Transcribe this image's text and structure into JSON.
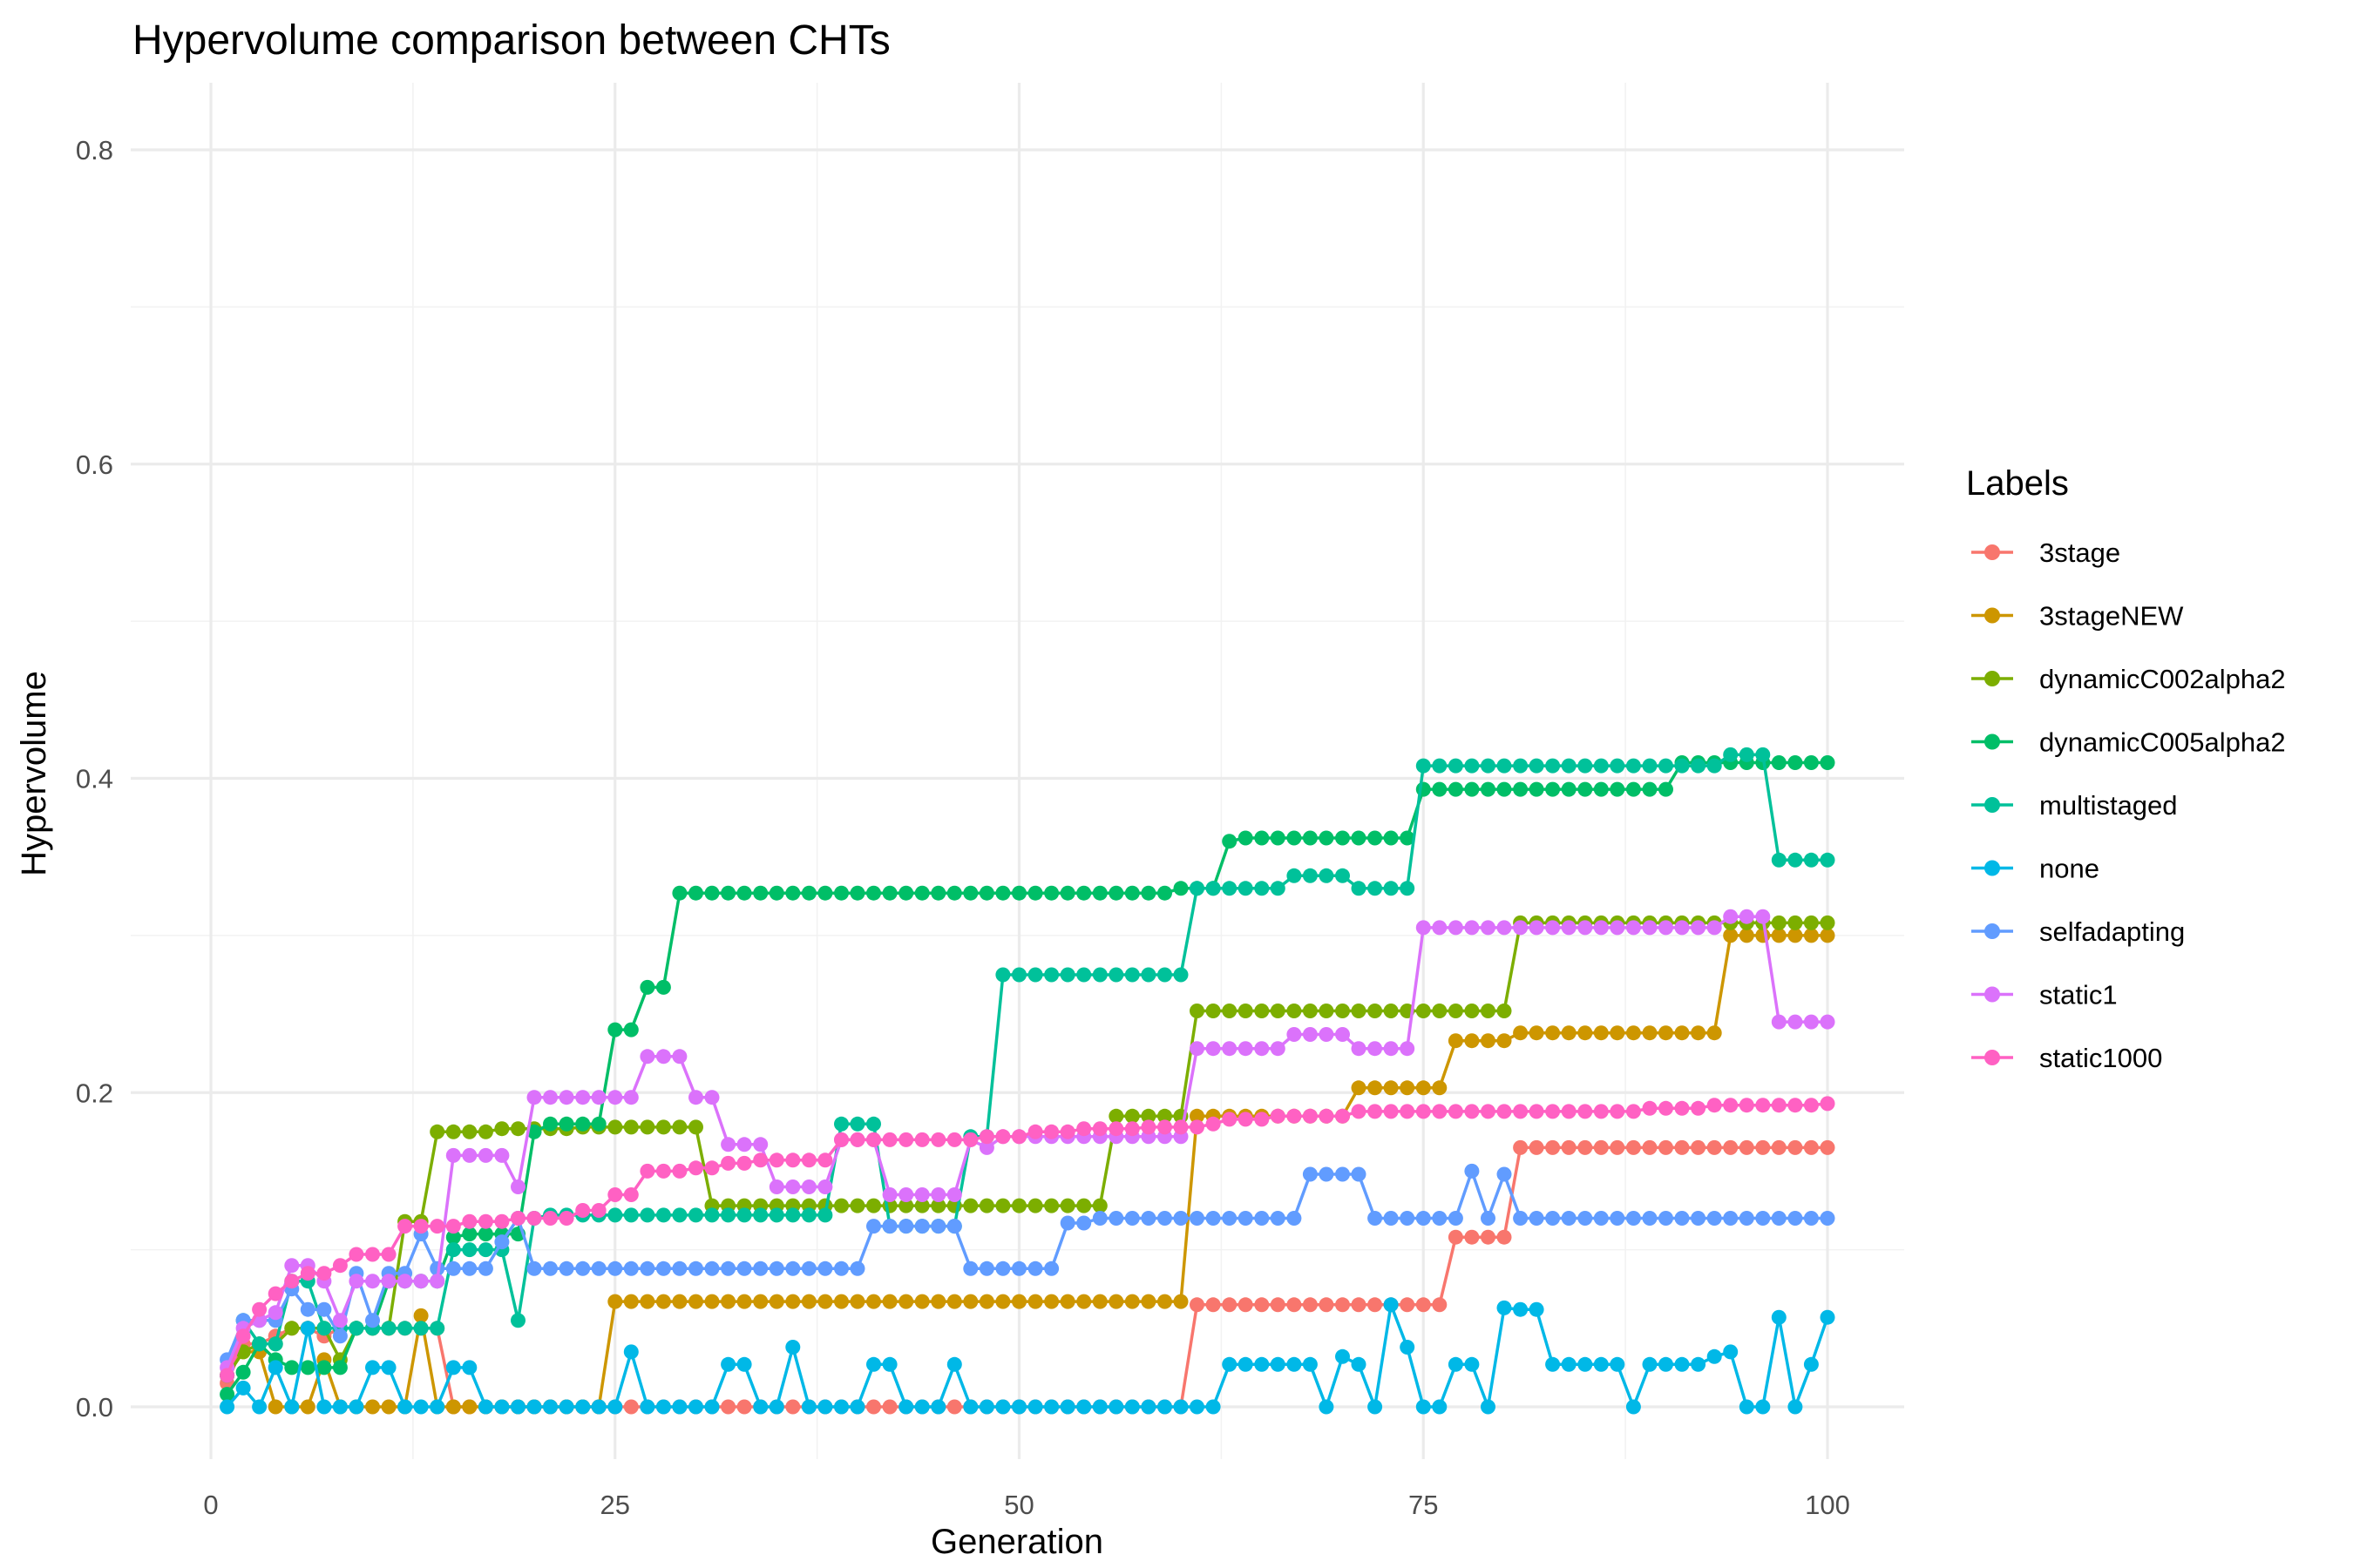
{
  "chart_data": {
    "type": "line",
    "title": "Hypervolume comparison between CHTs",
    "xlabel": "Generation",
    "ylabel": "Hypervolume",
    "xlim": [
      0,
      100
    ],
    "ylim": [
      0,
      0.8
    ],
    "x_ticks": [
      0,
      25,
      50,
      75,
      100
    ],
    "y_ticks": [
      0.0,
      0.2,
      0.4,
      0.6,
      0.8
    ],
    "x_tick_labels": [
      "0",
      "25",
      "50",
      "75",
      "100"
    ],
    "y_tick_labels": [
      "0.0",
      "0.2",
      "0.4",
      "0.6",
      "0.8"
    ],
    "grid": true,
    "markers": true,
    "legend": {
      "title": "Labels",
      "position": "right"
    },
    "x": [
      1,
      2,
      3,
      4,
      5,
      6,
      7,
      8,
      9,
      10,
      11,
      12,
      13,
      14,
      15,
      16,
      17,
      18,
      19,
      20,
      21,
      22,
      23,
      24,
      25,
      26,
      27,
      28,
      29,
      30,
      31,
      32,
      33,
      34,
      35,
      36,
      37,
      38,
      39,
      40,
      41,
      42,
      43,
      44,
      45,
      46,
      47,
      48,
      49,
      50,
      51,
      52,
      53,
      54,
      55,
      56,
      57,
      58,
      59,
      60,
      61,
      62,
      63,
      64,
      65,
      66,
      67,
      68,
      69,
      70,
      71,
      72,
      73,
      74,
      75,
      76,
      77,
      78,
      79,
      80,
      81,
      82,
      83,
      84,
      85,
      86,
      87,
      88,
      89,
      90,
      91,
      92,
      93,
      94,
      95,
      96,
      97,
      98,
      99,
      100
    ],
    "series": [
      {
        "name": "3stage",
        "color": "#F8766D",
        "values": [
          0.015,
          0.04,
          0.04,
          0.045,
          0.05,
          0.05,
          0.045,
          0.05,
          0.05,
          0.05,
          0.05,
          0.05,
          0.05,
          0.05,
          0,
          0,
          0,
          0,
          0,
          0,
          0,
          0,
          0,
          0,
          0,
          0,
          0,
          0,
          0,
          0,
          0,
          0,
          0,
          0,
          0,
          0,
          0,
          0,
          0,
          0,
          0,
          0,
          0,
          0,
          0,
          0,
          0,
          0,
          0,
          0,
          0,
          0,
          0,
          0,
          0,
          0,
          0,
          0,
          0,
          0,
          0.065,
          0.065,
          0.065,
          0.065,
          0.065,
          0.065,
          0.065,
          0.065,
          0.065,
          0.065,
          0.065,
          0.065,
          0.065,
          0.065,
          0.065,
          0.065,
          0.108,
          0.108,
          0.108,
          0.108,
          0.165,
          0.165,
          0.165,
          0.165,
          0.165,
          0.165,
          0.165,
          0.165,
          0.165,
          0.165,
          0.165,
          0.165,
          0.165,
          0.165,
          0.165,
          0.165,
          0.165,
          0.165,
          0.165,
          0.165
        ]
      },
      {
        "name": "3stageNEW",
        "color": "#CD9600",
        "values": [
          0.02,
          0.035,
          0.035,
          0,
          0,
          0,
          0.03,
          0,
          0,
          0,
          0,
          0,
          0.058,
          0,
          0,
          0,
          0,
          0,
          0,
          0,
          0,
          0,
          0,
          0,
          0.067,
          0.067,
          0.067,
          0.067,
          0.067,
          0.067,
          0.067,
          0.067,
          0.067,
          0.067,
          0.067,
          0.067,
          0.067,
          0.067,
          0.067,
          0.067,
          0.067,
          0.067,
          0.067,
          0.067,
          0.067,
          0.067,
          0.067,
          0.067,
          0.067,
          0.067,
          0.067,
          0.067,
          0.067,
          0.067,
          0.067,
          0.067,
          0.067,
          0.067,
          0.067,
          0.067,
          0.185,
          0.185,
          0.185,
          0.185,
          0.185,
          0.185,
          0.185,
          0.185,
          0.185,
          0.185,
          0.203,
          0.203,
          0.203,
          0.203,
          0.203,
          0.203,
          0.233,
          0.233,
          0.233,
          0.233,
          0.238,
          0.238,
          0.238,
          0.238,
          0.238,
          0.238,
          0.238,
          0.238,
          0.238,
          0.238,
          0.238,
          0.238,
          0.238,
          0.3,
          0.3,
          0.3,
          0.3,
          0.3,
          0.3,
          0.3
        ]
      },
      {
        "name": "dynamicC002alpha2",
        "color": "#7CAE00",
        "values": [
          0.02,
          0.035,
          0.04,
          0.04,
          0.05,
          0.05,
          0.05,
          0.03,
          0.05,
          0.05,
          0.05,
          0.118,
          0.118,
          0.175,
          0.175,
          0.175,
          0.175,
          0.177,
          0.177,
          0.177,
          0.177,
          0.177,
          0.178,
          0.178,
          0.178,
          0.178,
          0.178,
          0.178,
          0.178,
          0.178,
          0.128,
          0.128,
          0.128,
          0.128,
          0.128,
          0.128,
          0.128,
          0.128,
          0.128,
          0.128,
          0.128,
          0.128,
          0.128,
          0.128,
          0.128,
          0.128,
          0.128,
          0.128,
          0.128,
          0.128,
          0.128,
          0.128,
          0.128,
          0.128,
          0.128,
          0.185,
          0.185,
          0.185,
          0.185,
          0.185,
          0.252,
          0.252,
          0.252,
          0.252,
          0.252,
          0.252,
          0.252,
          0.252,
          0.252,
          0.252,
          0.252,
          0.252,
          0.252,
          0.252,
          0.252,
          0.252,
          0.252,
          0.252,
          0.252,
          0.252,
          0.308,
          0.308,
          0.308,
          0.308,
          0.308,
          0.308,
          0.308,
          0.308,
          0.308,
          0.308,
          0.308,
          0.308,
          0.308,
          0.308,
          0.308,
          0.308,
          0.308,
          0.308,
          0.308,
          0.308
        ]
      },
      {
        "name": "dynamicC005alpha2",
        "color": "#00BE67",
        "values": [
          0.008,
          0.022,
          0.04,
          0.03,
          0.025,
          0.025,
          0.025,
          0.025,
          0.05,
          0.05,
          0.08,
          0.08,
          0.08,
          0.08,
          0.108,
          0.11,
          0.11,
          0.11,
          0.11,
          0.175,
          0.18,
          0.18,
          0.18,
          0.18,
          0.24,
          0.24,
          0.267,
          0.267,
          0.327,
          0.327,
          0.327,
          0.327,
          0.327,
          0.327,
          0.327,
          0.327,
          0.327,
          0.327,
          0.327,
          0.327,
          0.327,
          0.327,
          0.327,
          0.327,
          0.327,
          0.327,
          0.327,
          0.327,
          0.327,
          0.327,
          0.327,
          0.327,
          0.327,
          0.327,
          0.327,
          0.327,
          0.327,
          0.327,
          0.327,
          0.33,
          0.33,
          0.33,
          0.36,
          0.362,
          0.362,
          0.362,
          0.362,
          0.362,
          0.362,
          0.362,
          0.362,
          0.362,
          0.362,
          0.362,
          0.393,
          0.393,
          0.393,
          0.393,
          0.393,
          0.393,
          0.393,
          0.393,
          0.393,
          0.393,
          0.393,
          0.393,
          0.393,
          0.393,
          0.393,
          0.393,
          0.41,
          0.41,
          0.41,
          0.41,
          0.41,
          0.41,
          0.41,
          0.41,
          0.41,
          0.41
        ]
      },
      {
        "name": "multistaged",
        "color": "#00C19A",
        "values": [
          0.02,
          0.055,
          0.04,
          0.04,
          0.08,
          0.08,
          0.05,
          0.05,
          0.05,
          0.05,
          0.05,
          0.05,
          0.05,
          0.05,
          0.1,
          0.1,
          0.1,
          0.1,
          0.055,
          0.12,
          0.122,
          0.122,
          0.122,
          0.122,
          0.122,
          0.122,
          0.122,
          0.122,
          0.122,
          0.122,
          0.122,
          0.122,
          0.122,
          0.122,
          0.122,
          0.122,
          0.122,
          0.122,
          0.18,
          0.18,
          0.18,
          0.115,
          0.115,
          0.115,
          0.115,
          0.115,
          0.172,
          0.172,
          0.275,
          0.275,
          0.275,
          0.275,
          0.275,
          0.275,
          0.275,
          0.275,
          0.275,
          0.275,
          0.275,
          0.275,
          0.33,
          0.33,
          0.33,
          0.33,
          0.33,
          0.33,
          0.338,
          0.338,
          0.338,
          0.338,
          0.33,
          0.33,
          0.33,
          0.33,
          0.408,
          0.408,
          0.408,
          0.408,
          0.408,
          0.408,
          0.408,
          0.408,
          0.408,
          0.408,
          0.408,
          0.408,
          0.408,
          0.408,
          0.408,
          0.408,
          0.408,
          0.408,
          0.408,
          0.415,
          0.415,
          0.415,
          0.348,
          0.348,
          0.348,
          0.348
        ]
      },
      {
        "name": "none",
        "color": "#00B8E7",
        "values": [
          0,
          0.012,
          0,
          0.025,
          0,
          0.05,
          0,
          0,
          0,
          0.025,
          0.025,
          0,
          0,
          0,
          0.025,
          0.025,
          0,
          0,
          0,
          0,
          0,
          0,
          0,
          0,
          0,
          0.035,
          0,
          0,
          0,
          0,
          0,
          0.027,
          0.027,
          0,
          0,
          0.038,
          0,
          0,
          0,
          0,
          0.027,
          0.027,
          0,
          0,
          0,
          0.027,
          0,
          0,
          0,
          0,
          0,
          0,
          0,
          0,
          0,
          0,
          0,
          0,
          0,
          0,
          0,
          0,
          0.027,
          0.027,
          0.027,
          0.027,
          0.027,
          0.027,
          0,
          0.032,
          0.027,
          0,
          0.065,
          0.038,
          0,
          0,
          0.027,
          0.027,
          0,
          0.063,
          0.062,
          0.062,
          0.027,
          0.027,
          0.027,
          0.027,
          0.027,
          0,
          0.027,
          0.027,
          0.027,
          0.027,
          0.032,
          0.035,
          0,
          0,
          0.057,
          0,
          0.027,
          0.057
        ]
      },
      {
        "name": "selfadapting",
        "color": "#619CFF",
        "values": [
          0.03,
          0.055,
          0.055,
          0.055,
          0.075,
          0.062,
          0.062,
          0.045,
          0.085,
          0.055,
          0.085,
          0.085,
          0.11,
          0.088,
          0.088,
          0.088,
          0.088,
          0.105,
          0.12,
          0.088,
          0.088,
          0.088,
          0.088,
          0.088,
          0.088,
          0.088,
          0.088,
          0.088,
          0.088,
          0.088,
          0.088,
          0.088,
          0.088,
          0.088,
          0.088,
          0.088,
          0.088,
          0.088,
          0.088,
          0.088,
          0.115,
          0.115,
          0.115,
          0.115,
          0.115,
          0.115,
          0.088,
          0.088,
          0.088,
          0.088,
          0.088,
          0.088,
          0.117,
          0.117,
          0.12,
          0.12,
          0.12,
          0.12,
          0.12,
          0.12,
          0.12,
          0.12,
          0.12,
          0.12,
          0.12,
          0.12,
          0.12,
          0.148,
          0.148,
          0.148,
          0.148,
          0.12,
          0.12,
          0.12,
          0.12,
          0.12,
          0.12,
          0.15,
          0.12,
          0.148,
          0.12,
          0.12,
          0.12,
          0.12,
          0.12,
          0.12,
          0.12,
          0.12,
          0.12,
          0.12,
          0.12,
          0.12,
          0.12,
          0.12,
          0.12,
          0.12,
          0.12,
          0.12,
          0.12,
          0.12
        ]
      },
      {
        "name": "static1",
        "color": "#DB72FB",
        "values": [
          0.025,
          0.05,
          0.055,
          0.06,
          0.09,
          0.09,
          0.08,
          0.055,
          0.08,
          0.08,
          0.08,
          0.08,
          0.08,
          0.08,
          0.16,
          0.16,
          0.16,
          0.16,
          0.14,
          0.197,
          0.197,
          0.197,
          0.197,
          0.197,
          0.197,
          0.197,
          0.223,
          0.223,
          0.223,
          0.197,
          0.197,
          0.167,
          0.167,
          0.167,
          0.14,
          0.14,
          0.14,
          0.14,
          0.17,
          0.17,
          0.17,
          0.135,
          0.135,
          0.135,
          0.135,
          0.135,
          0.17,
          0.165,
          0.172,
          0.172,
          0.172,
          0.172,
          0.172,
          0.172,
          0.172,
          0.172,
          0.172,
          0.172,
          0.172,
          0.172,
          0.228,
          0.228,
          0.228,
          0.228,
          0.228,
          0.228,
          0.237,
          0.237,
          0.237,
          0.237,
          0.228,
          0.228,
          0.228,
          0.228,
          0.305,
          0.305,
          0.305,
          0.305,
          0.305,
          0.305,
          0.305,
          0.305,
          0.305,
          0.305,
          0.305,
          0.305,
          0.305,
          0.305,
          0.305,
          0.305,
          0.305,
          0.305,
          0.305,
          0.312,
          0.312,
          0.312,
          0.245,
          0.245,
          0.245,
          0.245
        ]
      },
      {
        "name": "static1000",
        "color": "#FF61C3",
        "values": [
          0.02,
          0.045,
          0.062,
          0.072,
          0.08,
          0.085,
          0.085,
          0.09,
          0.097,
          0.097,
          0.097,
          0.115,
          0.115,
          0.115,
          0.115,
          0.118,
          0.118,
          0.118,
          0.12,
          0.12,
          0.12,
          0.12,
          0.125,
          0.125,
          0.135,
          0.135,
          0.15,
          0.15,
          0.15,
          0.152,
          0.152,
          0.155,
          0.155,
          0.157,
          0.157,
          0.157,
          0.157,
          0.157,
          0.17,
          0.17,
          0.17,
          0.17,
          0.17,
          0.17,
          0.17,
          0.17,
          0.17,
          0.172,
          0.172,
          0.172,
          0.175,
          0.175,
          0.175,
          0.177,
          0.177,
          0.177,
          0.177,
          0.178,
          0.178,
          0.178,
          0.178,
          0.18,
          0.183,
          0.183,
          0.183,
          0.185,
          0.185,
          0.185,
          0.185,
          0.185,
          0.188,
          0.188,
          0.188,
          0.188,
          0.188,
          0.188,
          0.188,
          0.188,
          0.188,
          0.188,
          0.188,
          0.188,
          0.188,
          0.188,
          0.188,
          0.188,
          0.188,
          0.188,
          0.19,
          0.19,
          0.19,
          0.19,
          0.192,
          0.192,
          0.192,
          0.192,
          0.192,
          0.192,
          0.192,
          0.193
        ]
      }
    ]
  }
}
